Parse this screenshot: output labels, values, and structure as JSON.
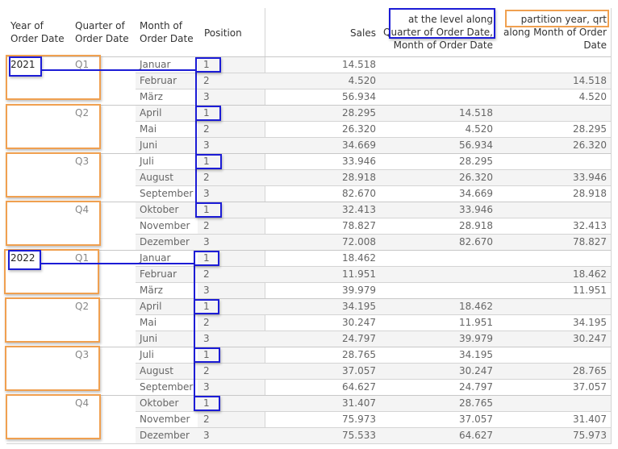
{
  "header": {
    "year": "Year of\nOrder Date",
    "year_l1": "Year of",
    "year_l2": "Order Date",
    "quarter_l1": "Quarter of",
    "quarter_l2": "Order Date",
    "month_l1": "Month of",
    "month_l2": "Order Date",
    "position": "Position",
    "sales": "Sales",
    "col2_l1": "at the level along",
    "col2_l2": "Quarter of Order Date,",
    "col2_l3": "Month of Order Date",
    "col3_l1": "partition year, qrt",
    "col3_l2": "along Month of Order",
    "col3_l3": "Date"
  },
  "years": [
    "2021",
    "2022"
  ],
  "quarters": [
    "Q1",
    "Q2",
    "Q3",
    "Q4"
  ],
  "rows": [
    {
      "month": "Januar",
      "pos": "1",
      "sales": "14.518",
      "c2": "",
      "c3": ""
    },
    {
      "month": "Februar",
      "pos": "2",
      "sales": "4.520",
      "c2": "",
      "c3": "14.518"
    },
    {
      "month": "März",
      "pos": "3",
      "sales": "56.934",
      "c2": "",
      "c3": "4.520"
    },
    {
      "month": "April",
      "pos": "1",
      "sales": "28.295",
      "c2": "14.518",
      "c3": ""
    },
    {
      "month": "Mai",
      "pos": "2",
      "sales": "26.320",
      "c2": "4.520",
      "c3": "28.295"
    },
    {
      "month": "Juni",
      "pos": "3",
      "sales": "34.669",
      "c2": "56.934",
      "c3": "26.320"
    },
    {
      "month": "Juli",
      "pos": "1",
      "sales": "33.946",
      "c2": "28.295",
      "c3": ""
    },
    {
      "month": "August",
      "pos": "2",
      "sales": "28.918",
      "c2": "26.320",
      "c3": "33.946"
    },
    {
      "month": "September",
      "pos": "3",
      "sales": "82.670",
      "c2": "34.669",
      "c3": "28.918"
    },
    {
      "month": "Oktober",
      "pos": "1",
      "sales": "32.413",
      "c2": "33.946",
      "c3": ""
    },
    {
      "month": "November",
      "pos": "2",
      "sales": "78.827",
      "c2": "28.918",
      "c3": "32.413"
    },
    {
      "month": "Dezember",
      "pos": "3",
      "sales": "72.008",
      "c2": "82.670",
      "c3": "78.827"
    },
    {
      "month": "Januar",
      "pos": "1",
      "sales": "18.462",
      "c2": "",
      "c3": ""
    },
    {
      "month": "Februar",
      "pos": "2",
      "sales": "11.951",
      "c2": "",
      "c3": "18.462"
    },
    {
      "month": "März",
      "pos": "3",
      "sales": "39.979",
      "c2": "",
      "c3": "11.951"
    },
    {
      "month": "April",
      "pos": "1",
      "sales": "34.195",
      "c2": "18.462",
      "c3": ""
    },
    {
      "month": "Mai",
      "pos": "2",
      "sales": "30.247",
      "c2": "11.951",
      "c3": "34.195"
    },
    {
      "month": "Juni",
      "pos": "3",
      "sales": "24.797",
      "c2": "39.979",
      "c3": "30.247"
    },
    {
      "month": "Juli",
      "pos": "1",
      "sales": "28.765",
      "c2": "34.195",
      "c3": ""
    },
    {
      "month": "August",
      "pos": "2",
      "sales": "37.057",
      "c2": "30.247",
      "c3": "28.765"
    },
    {
      "month": "September",
      "pos": "3",
      "sales": "64.627",
      "c2": "24.797",
      "c3": "37.057"
    },
    {
      "month": "Oktober",
      "pos": "1",
      "sales": "31.407",
      "c2": "28.765",
      "c3": ""
    },
    {
      "month": "November",
      "pos": "2",
      "sales": "75.973",
      "c2": "37.057",
      "c3": "31.407"
    },
    {
      "month": "Dezember",
      "pos": "3",
      "sales": "75.533",
      "c2": "64.627",
      "c3": "75.973"
    }
  ],
  "colors": {
    "annotation_orange": "#f0a050",
    "annotation_blue": "#1c1cd6",
    "row_band": "#f4f4f4",
    "grid": "#d4d4d4"
  }
}
